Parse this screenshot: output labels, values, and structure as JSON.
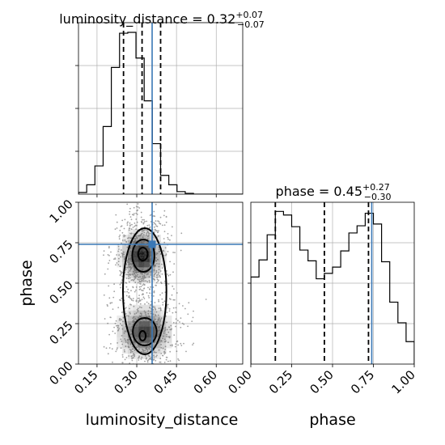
{
  "colors": {
    "truth": "#3a78b6",
    "line": "#000000",
    "grid": "#b0b0b0"
  },
  "chart_data": {
    "type": "corner",
    "parameters": [
      {
        "name": "luminosity_distance",
        "truth": 0.358,
        "title": {
          "main": "luminosity_distance = 0.32",
          "sup": "+0.07",
          "sub": "−0.07"
        },
        "quantiles": [
          0.25,
          0.32,
          0.39
        ],
        "range": [
          0.08,
          0.7
        ],
        "ticks": [
          0.15,
          0.3,
          0.45,
          0.6
        ],
        "tick_labels": [
          "0.15",
          "0.30",
          "0.45",
          "0.60"
        ],
        "bin_edges": [
          0.08,
          0.111,
          0.142,
          0.173,
          0.204,
          0.235,
          0.266,
          0.297,
          0.328,
          0.359,
          0.39,
          0.421,
          0.452,
          0.483,
          0.514,
          0.545,
          0.576,
          0.607,
          0.638,
          0.669,
          0.7
        ],
        "hist": [
          2,
          11,
          33,
          79,
          148,
          188,
          189,
          159,
          109,
          59,
          22,
          11,
          3,
          1,
          0,
          0,
          0,
          0,
          0,
          0
        ]
      },
      {
        "name": "phase",
        "truth": 0.74,
        "title": {
          "main": "phase = 0.45",
          "sup": "+0.27",
          "sub": "−0.30"
        },
        "quantiles": [
          0.15,
          0.45,
          0.72
        ],
        "range": [
          0.0,
          1.0
        ],
        "ticks": [
          0.0,
          0.25,
          0.5,
          0.75,
          1.0
        ],
        "tick_labels": [
          "0.00",
          "0.25",
          "0.50",
          "0.75",
          "1.00"
        ],
        "bin_edges": [
          0.0,
          0.05,
          0.1,
          0.15,
          0.2,
          0.25,
          0.3,
          0.35,
          0.4,
          0.45,
          0.5,
          0.55,
          0.6,
          0.65,
          0.7,
          0.75,
          0.8,
          0.85,
          0.9,
          0.95,
          1.0
        ],
        "hist": [
          97,
          116,
          144,
          170,
          166,
          153,
          127,
          115,
          95,
          101,
          108,
          126,
          146,
          154,
          168,
          156,
          114,
          69,
          46,
          25
        ]
      }
    ],
    "axis_labels": {
      "x_left": "luminosity_distance",
      "x_right": "phase",
      "y_bottom": "phase"
    },
    "density_2d": {
      "modes": [
        {
          "x": 0.32,
          "y": 0.67,
          "sx": 0.035,
          "sy": 0.07,
          "w": 0.55
        },
        {
          "x": 0.33,
          "y": 0.2,
          "sx": 0.045,
          "sy": 0.07,
          "w": 0.45
        }
      ],
      "contours": [
        {
          "level": "inner",
          "shapes": [
            {
              "cx": 0.323,
              "cy": 0.68,
              "rx": 0.018,
              "ry": 0.04
            },
            {
              "cx": 0.322,
              "cy": 0.175,
              "rx": 0.012,
              "ry": 0.03
            }
          ]
        },
        {
          "level": "middle",
          "shapes": [
            {
              "cx": 0.325,
              "cy": 0.67,
              "rx": 0.042,
              "ry": 0.1
            },
            {
              "cx": 0.33,
              "cy": 0.2,
              "rx": 0.045,
              "ry": 0.085
            }
          ]
        },
        {
          "level": "outer",
          "shapes": [
            {
              "cx": 0.33,
              "cy": 0.45,
              "rx": 0.082,
              "ry": 0.39
            }
          ]
        }
      ],
      "truth_point": {
        "x": 0.358,
        "y": 0.74
      }
    },
    "grid": true
  }
}
